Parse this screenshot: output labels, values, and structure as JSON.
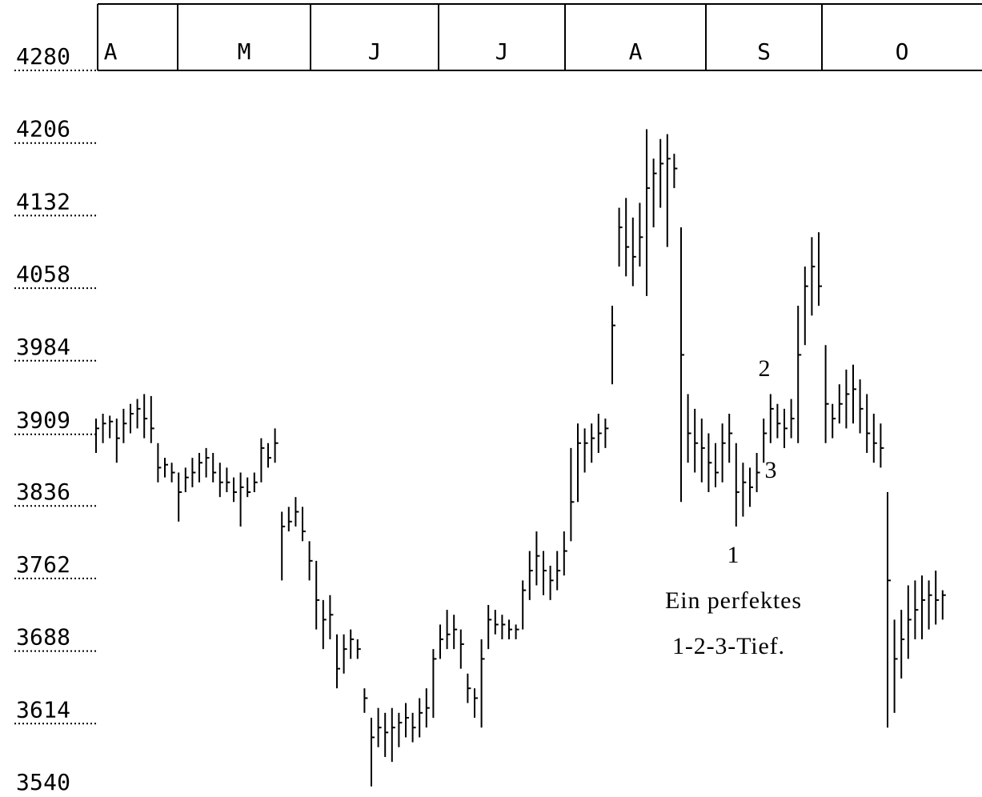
{
  "chart_data": {
    "type": "ohlc",
    "categories": [
      "A",
      "M",
      "J",
      "J",
      "A",
      "S",
      "O"
    ],
    "ylim": [
      3540,
      4280
    ],
    "yticks": [
      4280,
      4206,
      4132,
      4058,
      3984,
      3909,
      3836,
      3762,
      3688,
      3614,
      3540
    ],
    "annotations": [
      "1",
      "2",
      "3",
      "Ein perfektes",
      "1-2-3-Tief."
    ],
    "color": "#000000",
    "high": [
      3925,
      3930,
      3928,
      3925,
      3935,
      3940,
      3945,
      3950,
      3948,
      3900,
      3885,
      3880,
      3870,
      3875,
      3885,
      3890,
      3895,
      3890,
      3880,
      3875,
      3865,
      3870,
      3865,
      3870,
      3905,
      3900,
      3915,
      3830,
      3835,
      3845,
      3835,
      3800,
      3780,
      3740,
      3745,
      3705,
      3705,
      3710,
      3700,
      3650,
      3620,
      3630,
      3625,
      3630,
      3625,
      3635,
      3625,
      3640,
      3650,
      3690,
      3715,
      3730,
      3725,
      3710,
      3665,
      3650,
      3700,
      3735,
      3730,
      3725,
      3720,
      3715,
      3760,
      3790,
      3810,
      3790,
      3775,
      3790,
      3810,
      3895,
      3920,
      3915,
      3920,
      3930,
      3925,
      4040,
      4140,
      4150,
      4130,
      4145,
      4220,
      4190,
      4210,
      4215,
      4195,
      4120,
      3950,
      3935,
      3925,
      3910,
      3900,
      3920,
      3930,
      3900,
      3880,
      3875,
      3890,
      3925,
      3950,
      3940,
      3935,
      3945,
      4040,
      4080,
      4110,
      4115,
      4000,
      3940,
      3960,
      3975,
      3980,
      3965,
      3950,
      3930,
      3920,
      3850,
      3720,
      3730,
      3755,
      3760,
      3765,
      3760,
      3770,
      3750
    ],
    "low": [
      3890,
      3900,
      3905,
      3880,
      3900,
      3910,
      3915,
      3905,
      3900,
      3860,
      3865,
      3860,
      3820,
      3850,
      3855,
      3860,
      3865,
      3860,
      3845,
      3850,
      3840,
      3815,
      3845,
      3850,
      3860,
      3875,
      3880,
      3760,
      3810,
      3815,
      3800,
      3760,
      3710,
      3690,
      3700,
      3650,
      3665,
      3680,
      3680,
      3625,
      3550,
      3590,
      3580,
      3575,
      3590,
      3600,
      3595,
      3600,
      3610,
      3620,
      3680,
      3690,
      3690,
      3670,
      3635,
      3620,
      3610,
      3690,
      3705,
      3700,
      3700,
      3700,
      3710,
      3740,
      3755,
      3745,
      3740,
      3750,
      3765,
      3800,
      3840,
      3870,
      3880,
      3890,
      3895,
      3960,
      4080,
      4070,
      4060,
      4080,
      4050,
      4120,
      4140,
      4100,
      4160,
      3840,
      3880,
      3870,
      3860,
      3850,
      3855,
      3860,
      3880,
      3815,
      3825,
      3835,
      3850,
      3880,
      3900,
      3905,
      3895,
      3905,
      3900,
      4000,
      4030,
      4040,
      3900,
      3905,
      3920,
      3915,
      3920,
      3910,
      3890,
      3880,
      3875,
      3610,
      3625,
      3660,
      3680,
      3700,
      3700,
      3710,
      3715,
      3720
    ],
    "close": [
      3915,
      3920,
      3922,
      3905,
      3920,
      3930,
      3935,
      3925,
      3915,
      3875,
      3878,
      3870,
      3850,
      3865,
      3870,
      3880,
      3885,
      3870,
      3860,
      3860,
      3850,
      3855,
      3850,
      3860,
      3895,
      3885,
      3900,
      3815,
      3820,
      3830,
      3810,
      3780,
      3740,
      3720,
      3725,
      3670,
      3690,
      3700,
      3690,
      3640,
      3600,
      3610,
      3605,
      3610,
      3615,
      3620,
      3610,
      3625,
      3630,
      3680,
      3700,
      3705,
      3710,
      3695,
      3650,
      3640,
      3680,
      3720,
      3715,
      3715,
      3710,
      3710,
      3750,
      3770,
      3785,
      3770,
      3760,
      3770,
      3790,
      3840,
      3900,
      3900,
      3905,
      3910,
      3915,
      4020,
      4120,
      4100,
      4090,
      4110,
      4160,
      4175,
      4185,
      4190,
      4180,
      3990,
      3910,
      3900,
      3895,
      3880,
      3870,
      3900,
      3910,
      3850,
      3860,
      3855,
      3870,
      3910,
      3935,
      3920,
      3915,
      3925,
      3990,
      4060,
      4080,
      4060,
      3940,
      3925,
      3940,
      3950,
      3955,
      3935,
      3910,
      3900,
      3895,
      3760,
      3680,
      3700,
      3720,
      3730,
      3740,
      3745,
      3740,
      3745
    ]
  }
}
